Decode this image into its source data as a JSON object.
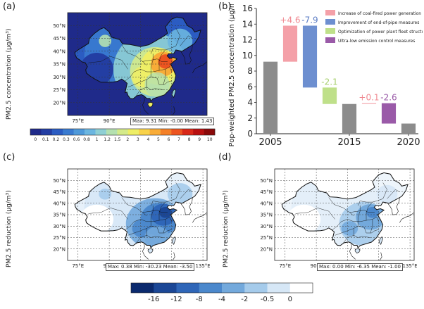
{
  "panels": {
    "a": {
      "label": "(a)",
      "ylabel": "PM2.5 concentration (μg/m³)",
      "stats": "Max: 9.31 Min: -0.00 Mean: 1.43"
    },
    "b": {
      "label": "(b)"
    },
    "c": {
      "label": "(c)",
      "ylabel": "PM2.5 reduction (μg/m³)",
      "stats": "Max: 0.38 Min: -30.23 Mean: -3.50"
    },
    "d": {
      "label": "(d)",
      "ylabel": "PM2.5 reduction (μg/m³)",
      "stats": "Max: 0.00 Min: -6.35 Mean: -1.00"
    }
  },
  "map_axes": {
    "lat_labels": [
      "50°N",
      "45°N",
      "40°N",
      "35°N",
      "30°N",
      "25°N",
      "20°N"
    ],
    "lon_labels": [
      "75°E",
      "90°E",
      "105°E",
      "120°E",
      "135°E"
    ]
  },
  "colorbar_a": {
    "ticks": [
      "0",
      "0.1",
      "0.2",
      "0.3",
      "0.6",
      "0.8",
      "1",
      "1.2",
      "1.5",
      "2",
      "3",
      "4",
      "5",
      "6",
      "7",
      "8",
      "9",
      "10"
    ],
    "colors": [
      "#1f2a8a",
      "#233ea3",
      "#2b5cc2",
      "#3a7bd0",
      "#4f99d9",
      "#6cb6e0",
      "#8fcfd4",
      "#b4e0b0",
      "#d4ea8a",
      "#eeee66",
      "#f8d24a",
      "#f8ac38",
      "#f48028",
      "#ec5420",
      "#d82818",
      "#b81010",
      "#8a0a0a"
    ]
  },
  "colorbar_cd": {
    "ticks": [
      "-16",
      "-12",
      "-8",
      "-4",
      "-2",
      "-0.5",
      "0"
    ],
    "colors": [
      "#0b2a6e",
      "#1b4796",
      "#2f66b8",
      "#4b88cc",
      "#73a9dc",
      "#a5cbeb",
      "#d6e7f6",
      "#ffffff"
    ]
  },
  "chart_data": {
    "type": "bar",
    "title": "",
    "xlabel": "",
    "ylabel": "Pop-weighted PM2.5 concentration (μg/m³)",
    "ylim": [
      0,
      16
    ],
    "yticks": [
      0,
      2,
      4,
      6,
      8,
      10,
      12,
      14,
      16
    ],
    "xtick_labels": [
      "2005",
      "2015",
      "2020"
    ],
    "legend_position": "top-right",
    "legend": [
      {
        "name": "Increase of coal-fired power generation",
        "color": "#f4a0a8"
      },
      {
        "name": "Improvement of end-of-pipe measures",
        "color": "#6d8fd0"
      },
      {
        "name": "Optimization of power plant fleet structure",
        "color": "#bfe08a"
      },
      {
        "name": "Ultra-low emission control measures",
        "color": "#9a5aa8"
      }
    ],
    "bars": [
      {
        "label": "2005",
        "bottom": 0,
        "top": 9.2,
        "color": "#8c8c8c",
        "annotation": ""
      },
      {
        "label": "coal",
        "bottom": 9.2,
        "top": 13.8,
        "color": "#f4a0a8",
        "annotation": "+4.6",
        "annotation_color": "#f08890"
      },
      {
        "label": "eop",
        "bottom": 5.9,
        "top": 13.8,
        "color": "#6d8fd0",
        "annotation": "-7.9",
        "annotation_color": "#5b7cc4"
      },
      {
        "label": "fleet",
        "bottom": 3.8,
        "top": 5.9,
        "color": "#bfe08a",
        "annotation": "-2.1",
        "annotation_color": "#a8d070"
      },
      {
        "label": "2015",
        "bottom": 0,
        "top": 3.8,
        "color": "#8c8c8c",
        "annotation": ""
      },
      {
        "label": "coal2",
        "bottom": 3.8,
        "top": 3.9,
        "color": "#f4a0a8",
        "annotation": "+0.1",
        "annotation_color": "#f08890"
      },
      {
        "label": "ulec",
        "bottom": 1.3,
        "top": 3.9,
        "color": "#9a5aa8",
        "annotation": "-2.6",
        "annotation_color": "#9a5aa8"
      },
      {
        "label": "2020",
        "bottom": 0,
        "top": 1.3,
        "color": "#8c8c8c",
        "annotation": ""
      }
    ]
  }
}
